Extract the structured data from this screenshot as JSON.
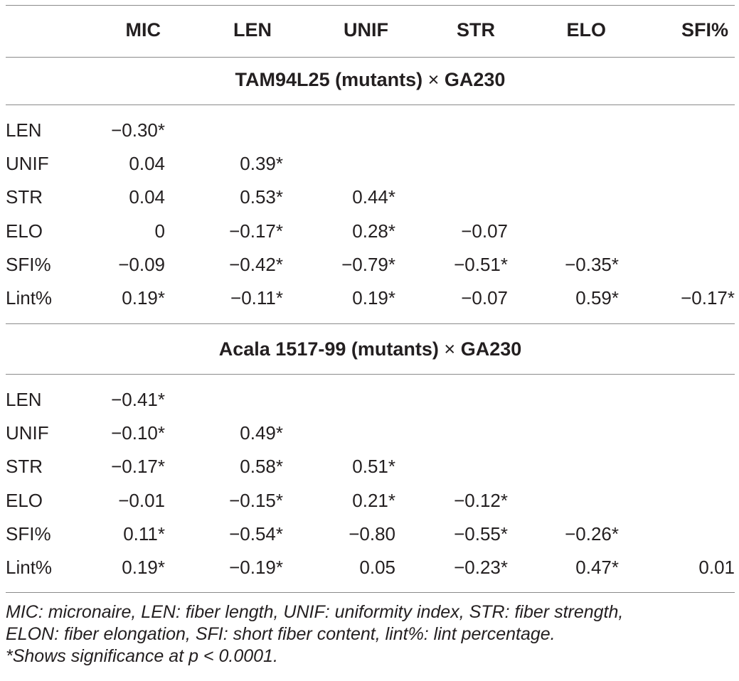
{
  "columns": [
    "MIC",
    "LEN",
    "UNIF",
    "STR",
    "ELO",
    "SFI%"
  ],
  "groups": [
    {
      "title": "TAM94L25 (mutants)",
      "times": "×",
      "title_tail": "GA230",
      "rows": [
        {
          "label": "LEN",
          "values": [
            "−0.30*",
            "",
            "",
            "",
            "",
            ""
          ]
        },
        {
          "label": "UNIF",
          "values": [
            "0.04",
            "0.39*",
            "",
            "",
            "",
            ""
          ]
        },
        {
          "label": "STR",
          "values": [
            "0.04",
            "0.53*",
            "0.44*",
            "",
            "",
            ""
          ]
        },
        {
          "label": "ELO",
          "values": [
            "0",
            "−0.17*",
            "0.28*",
            "−0.07",
            "",
            ""
          ]
        },
        {
          "label": "SFI%",
          "values": [
            "−0.09",
            "−0.42*",
            "−0.79*",
            "−0.51*",
            "−0.35*",
            ""
          ]
        },
        {
          "label": "Lint%",
          "values": [
            "0.19*",
            "−0.11*",
            "0.19*",
            "−0.07",
            "0.59*",
            "−0.17*"
          ]
        }
      ]
    },
    {
      "title": "Acala 1517-99 (mutants)",
      "times": "×",
      "title_tail": "GA230",
      "rows": [
        {
          "label": "LEN",
          "values": [
            "−0.41*",
            "",
            "",
            "",
            "",
            ""
          ]
        },
        {
          "label": "UNIF",
          "values": [
            "−0.10*",
            "0.49*",
            "",
            "",
            "",
            ""
          ]
        },
        {
          "label": "STR",
          "values": [
            "−0.17*",
            "0.58*",
            "0.51*",
            "",
            "",
            ""
          ]
        },
        {
          "label": "ELO",
          "values": [
            "−0.01",
            "−0.15*",
            "0.21*",
            "−0.12*",
            "",
            ""
          ]
        },
        {
          "label": "SFI%",
          "values": [
            "0.11*",
            "−0.54*",
            "−0.80",
            "−0.55*",
            "−0.26*",
            ""
          ]
        },
        {
          "label": "Lint%",
          "values": [
            "0.19*",
            "−0.19*",
            "0.05",
            "−0.23*",
            "0.47*",
            "0.01"
          ]
        }
      ]
    }
  ],
  "footnote": {
    "line1": "MIC: micronaire, LEN: fiber length, UNIF: uniformity index, STR: fiber strength,",
    "line2": "ELON: fiber elongation, SFI: short fiber content, lint%: lint percentage.",
    "line3": "*Shows significance at p < 0.0001."
  }
}
